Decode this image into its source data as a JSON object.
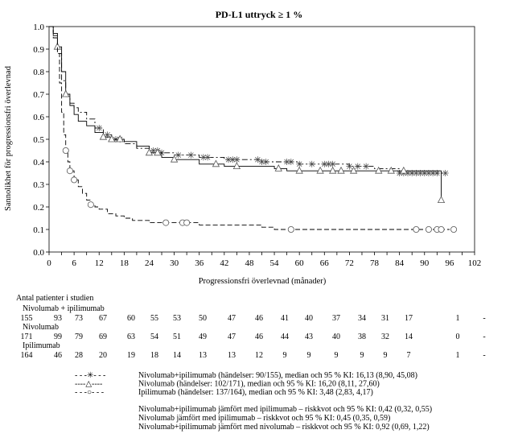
{
  "chart_data": {
    "type": "line",
    "title": "PD-L1 uttryck ≥ 1 %",
    "xlabel": "Progressionsfri överlevnad (månader)",
    "ylabel": "Sannolikhet för progressionsfri överlevnad",
    "xlim": [
      0,
      102
    ],
    "ylim": [
      0,
      1.0
    ],
    "x_ticks": [
      "0",
      "3",
      "6",
      "9",
      "12",
      "15",
      "18",
      "21",
      "24",
      "27",
      "30",
      "33",
      "36",
      "39",
      "42",
      "45",
      "48",
      "51",
      "54",
      "57",
      "60",
      "63",
      "66",
      "69",
      "72",
      "75",
      "78",
      "81",
      "84",
      "87",
      "90",
      "93",
      "96",
      "99",
      "102"
    ],
    "y_ticks": [
      "0.0",
      "0.1",
      "0.2",
      "0.3",
      "0.4",
      "0.5",
      "0.6",
      "0.7",
      "0.8",
      "0.9",
      "1.0"
    ],
    "grid": false,
    "series": [
      {
        "name": "Nivolumab+ipilimumab",
        "style": "dash-dot",
        "marker": "star",
        "x": [
          0,
          1,
          2,
          3,
          4,
          5,
          6,
          7,
          9,
          11,
          13,
          15,
          18,
          21,
          24,
          27,
          30,
          33,
          36,
          39,
          42,
          45,
          48,
          51,
          54,
          57,
          60,
          63,
          66,
          69,
          72,
          75,
          78,
          81,
          84,
          87,
          90,
          93,
          95
        ],
        "y": [
          1.0,
          0.96,
          0.88,
          0.76,
          0.69,
          0.66,
          0.64,
          0.62,
          0.59,
          0.55,
          0.52,
          0.5,
          0.48,
          0.46,
          0.45,
          0.44,
          0.43,
          0.43,
          0.42,
          0.42,
          0.41,
          0.41,
          0.41,
          0.4,
          0.4,
          0.4,
          0.39,
          0.39,
          0.39,
          0.39,
          0.38,
          0.38,
          0.37,
          0.37,
          0.35,
          0.35,
          0.35,
          0.35,
          0.35
        ],
        "censor_x": [
          12,
          14,
          16,
          17,
          25,
          26,
          27,
          31,
          34,
          37,
          38,
          43,
          44,
          45,
          50,
          51,
          52,
          57,
          58,
          60,
          63,
          66,
          67,
          68,
          72,
          74,
          76,
          84,
          85,
          86,
          87,
          88,
          89,
          90,
          91,
          92,
          93,
          95
        ]
      },
      {
        "name": "Nivolumab",
        "style": "solid",
        "marker": "triangle",
        "x": [
          0,
          1,
          2,
          3,
          4,
          5,
          6,
          7,
          9,
          11,
          13,
          15,
          18,
          21,
          24,
          27,
          30,
          33,
          36,
          39,
          42,
          45,
          48,
          51,
          54,
          57,
          60,
          63,
          66,
          69,
          72,
          75,
          78,
          81,
          84,
          87,
          90,
          93,
          94,
          94
        ],
        "y": [
          1.0,
          0.97,
          0.91,
          0.8,
          0.7,
          0.65,
          0.61,
          0.58,
          0.56,
          0.53,
          0.51,
          0.5,
          0.49,
          0.47,
          0.44,
          0.42,
          0.41,
          0.41,
          0.39,
          0.39,
          0.38,
          0.38,
          0.38,
          0.38,
          0.37,
          0.36,
          0.36,
          0.36,
          0.36,
          0.36,
          0.36,
          0.36,
          0.36,
          0.36,
          0.36,
          0.36,
          0.36,
          0.36,
          0.36,
          0.23
        ],
        "censor_x": [
          2,
          4,
          13,
          15,
          17,
          24,
          26,
          30,
          40,
          45,
          55,
          60,
          65,
          68,
          70,
          73,
          79,
          82,
          85,
          94
        ]
      },
      {
        "name": "Ipilimumab",
        "style": "dashed",
        "marker": "circle",
        "x": [
          0,
          1,
          2,
          2.5,
          3,
          3.5,
          4,
          4.5,
          5,
          6,
          7,
          8,
          9,
          10,
          11,
          12,
          14,
          16,
          18,
          20,
          22,
          24,
          27,
          30,
          33,
          36,
          39,
          42,
          45,
          48,
          51,
          54,
          57,
          60,
          63,
          66,
          69,
          72,
          75,
          78,
          81,
          84,
          87,
          90,
          93,
          96
        ],
        "y": [
          1.0,
          0.95,
          0.88,
          0.75,
          0.62,
          0.52,
          0.45,
          0.4,
          0.36,
          0.32,
          0.29,
          0.26,
          0.23,
          0.21,
          0.2,
          0.19,
          0.17,
          0.16,
          0.15,
          0.14,
          0.14,
          0.13,
          0.13,
          0.13,
          0.13,
          0.12,
          0.12,
          0.12,
          0.12,
          0.12,
          0.11,
          0.1,
          0.1,
          0.1,
          0.1,
          0.1,
          0.1,
          0.1,
          0.1,
          0.1,
          0.1,
          0.1,
          0.1,
          0.1,
          0.1,
          0.1
        ],
        "censor_x": [
          4,
          5,
          6,
          10,
          28,
          32,
          33,
          58,
          88,
          91,
          93,
          94,
          97
        ]
      }
    ],
    "risk_table": {
      "title": "Antal patienter i studien",
      "groups": [
        {
          "label": "Nivolumab + ipilimumab",
          "values": [
            "155",
            "93",
            "73",
            "67",
            "60",
            "55",
            "53",
            "50",
            "47",
            "46",
            "41",
            "40",
            "37",
            "34",
            "31",
            "17",
            "",
            "1",
            "-"
          ]
        },
        {
          "label": "Nivolumab",
          "values": [
            "171",
            "99",
            "79",
            "69",
            "63",
            "54",
            "51",
            "49",
            "47",
            "46",
            "44",
            "43",
            "40",
            "38",
            "32",
            "14",
            "",
            "0",
            "-"
          ]
        },
        {
          "label": "Ipilimumab",
          "values": [
            "164",
            "46",
            "28",
            "20",
            "19",
            "18",
            "14",
            "13",
            "13",
            "12",
            "9",
            "9",
            "9",
            "9",
            "9",
            "7",
            "",
            "1",
            "-"
          ]
        }
      ]
    },
    "legend": [
      {
        "symbol": "- - -✳- - -",
        "text": "Nivolumab+ipilimumab (händelser: 90/155), median och 95 % KI: 16,13 (8,90, 45,08)"
      },
      {
        "symbol": "----△----",
        "text": "Nivolumab (händelser: 102/171), median och 95 % KI: 16,20 (8,11, 27,60)"
      },
      {
        "symbol": "- - -○- - -",
        "text": "Ipilimumab (händelser: 137/164), median och 95 % KI: 3,48 (2,83, 4,17)"
      }
    ],
    "notes": [
      "Nivolumab+ipilimumab jämfört med ipilimumab – riskkvot och 95 % KI: 0,42 (0,32, 0,55)",
      "Nivolumab jämfört med ipilimumab – riskkvot och 95 % KI: 0,45 (0,35, 0,59)",
      "Nivolumab+ipilimumab jämfört med nivolumab – riskkvot och 95 % KI: 0,92 (0,69, 1,22)"
    ]
  }
}
